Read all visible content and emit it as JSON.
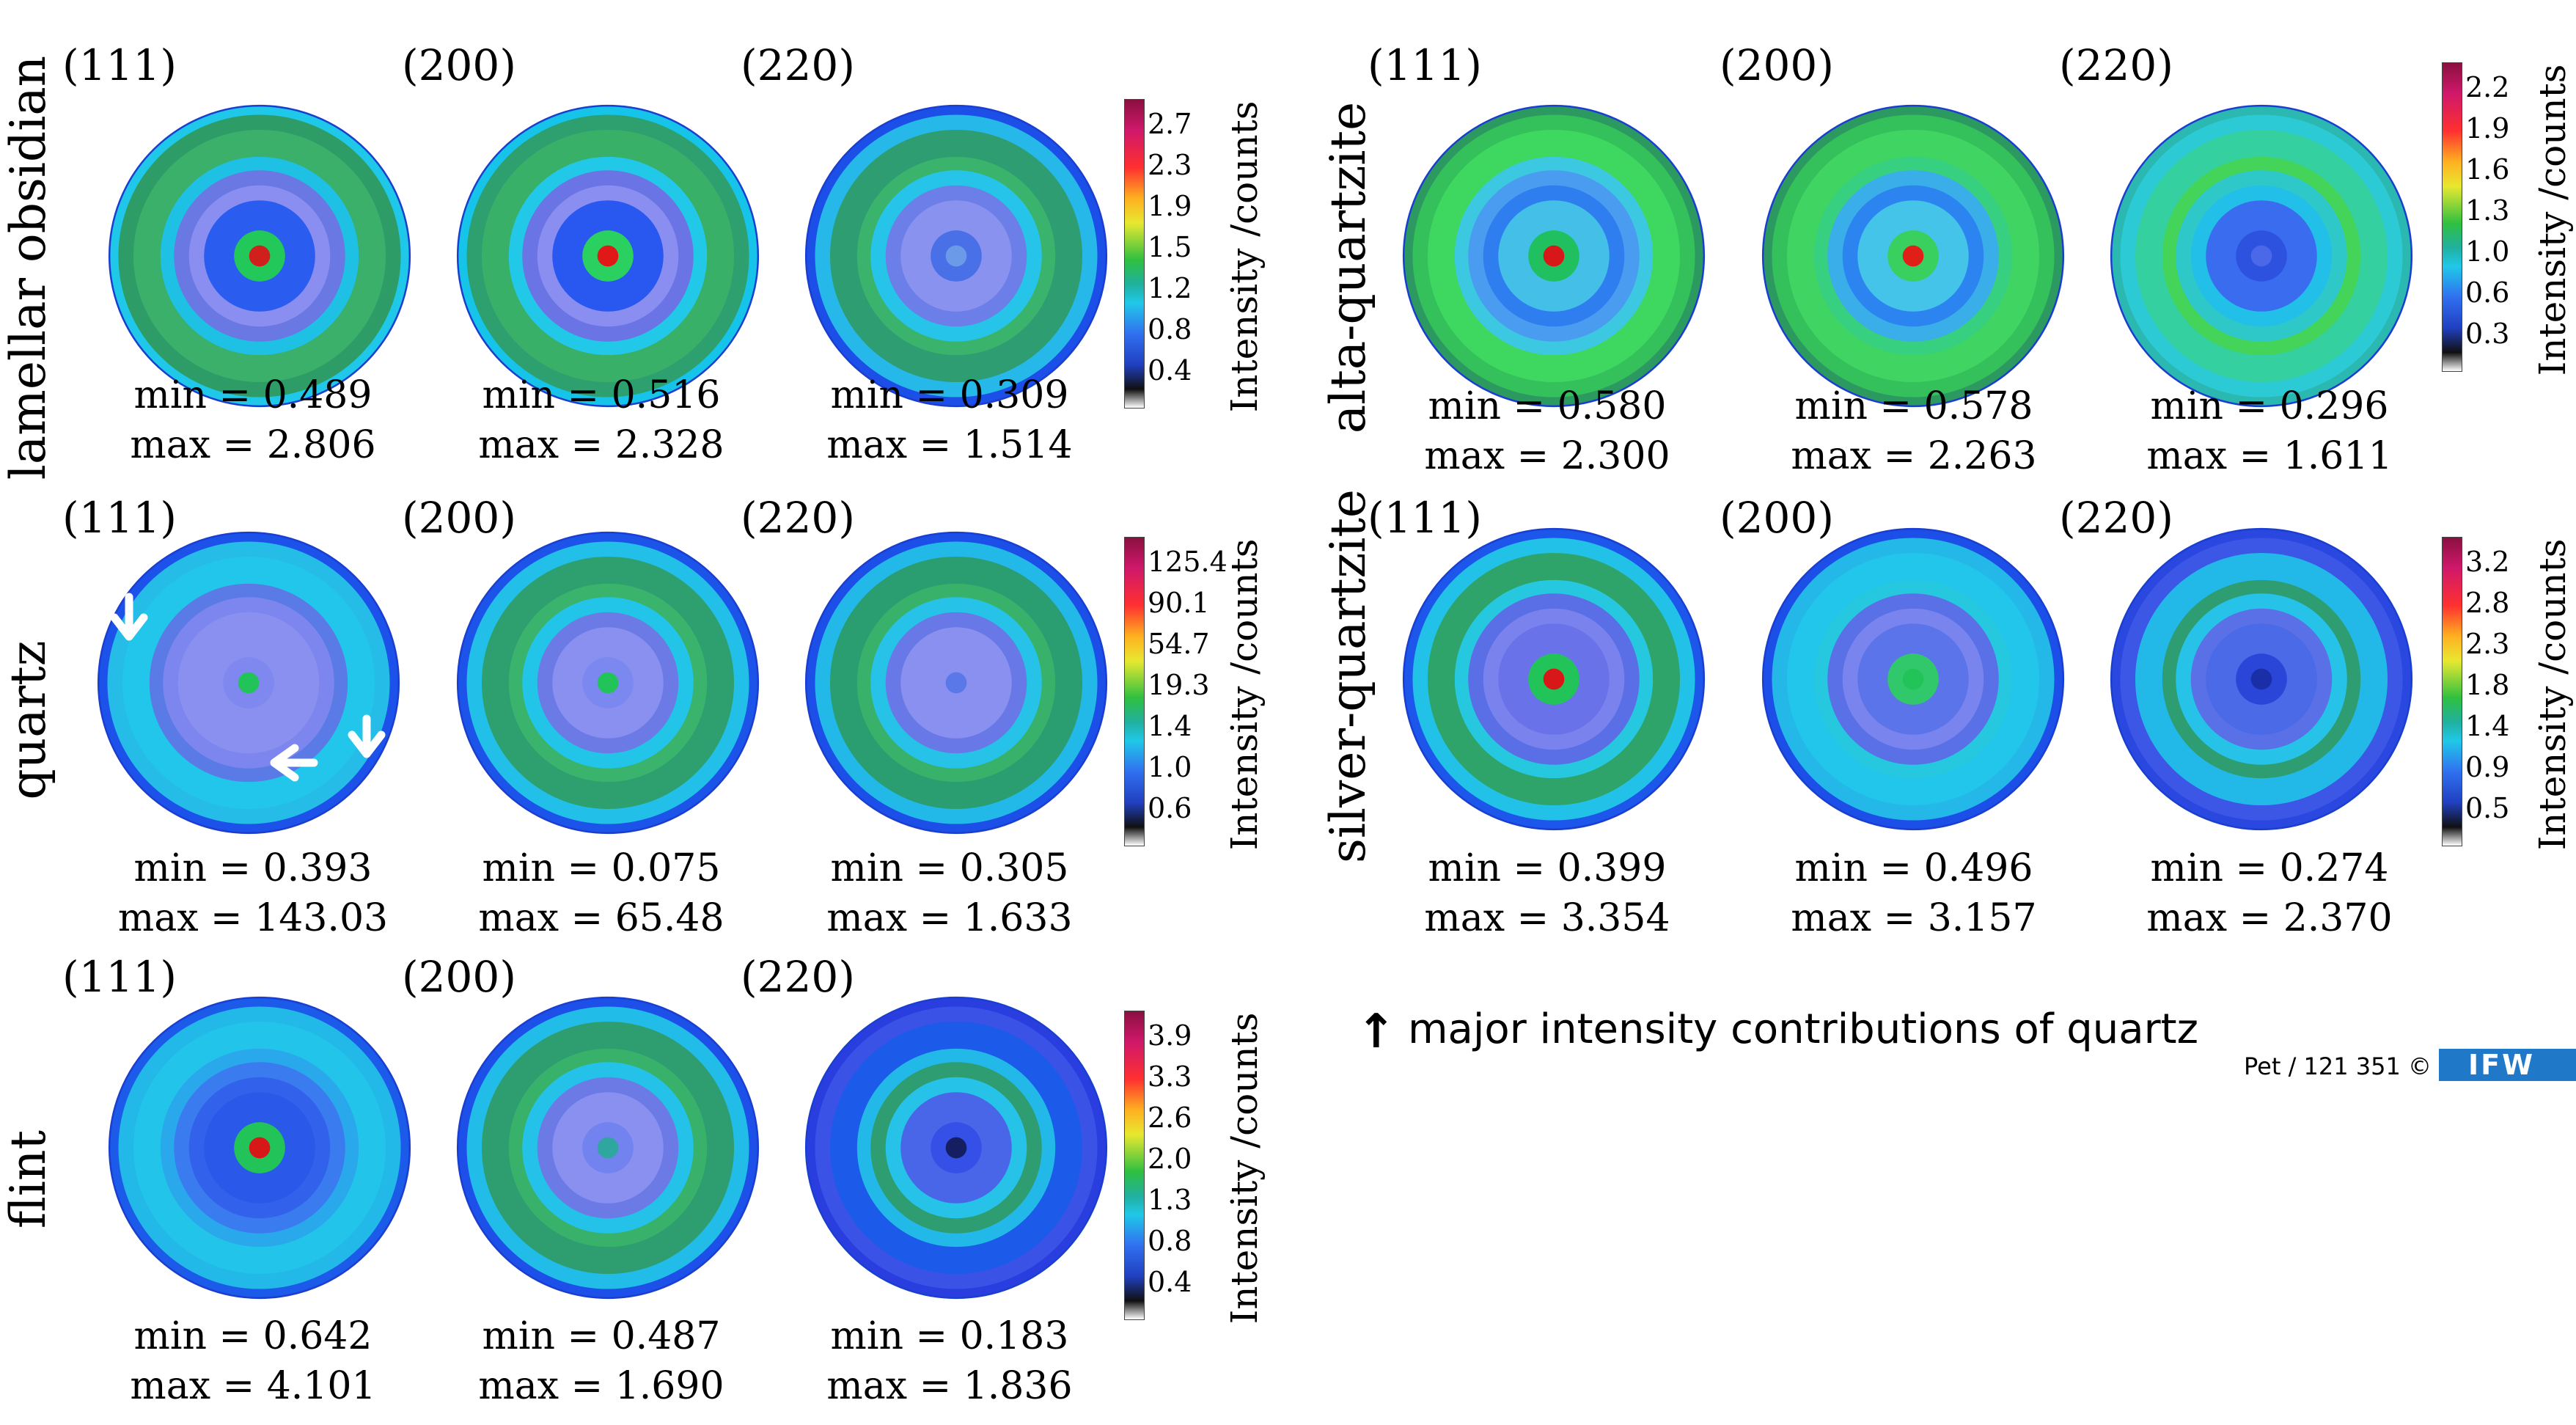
{
  "panels": [
    {
      "sample": "lamellar obsidian",
      "scale_ticks": [
        "2.7",
        "2.3",
        "1.9",
        "1.5",
        "1.2",
        "0.8",
        "0.4"
      ],
      "intensity_label": "Intensity /counts",
      "poles": [
        {
          "hkl": "(111)",
          "min": "min = 0.489",
          "max": "max = 2.806",
          "colors": [
            "#1fc8e8",
            "#2e9c66",
            "#3ab06a",
            "#1ec0e4",
            "#6a78e4",
            "#8a8ef0",
            "#2a5cf0",
            "#22c85a",
            "#d0201e"
          ]
        },
        {
          "hkl": "(200)",
          "min": "min = 0.516",
          "max": "max = 2.328",
          "colors": [
            "#16c4ea",
            "#2ea070",
            "#38b068",
            "#22c8e8",
            "#6a74e4",
            "#8a8ef0",
            "#2858f0",
            "#2ad060",
            "#e01818"
          ]
        },
        {
          "hkl": "(220)",
          "min": "min = 0.309",
          "max": "max = 1.514",
          "colors": [
            "#1c4ee8",
            "#26b8e8",
            "#2e9e72",
            "#3ab46c",
            "#26c4e8",
            "#6c7ee8",
            "#8a92f0",
            "#4a70e8",
            "#6a9ae8"
          ]
        }
      ]
    },
    {
      "sample": "alta-quartzite",
      "scale_ticks": [
        "2.2",
        "1.9",
        "1.6",
        "1.3",
        "1.0",
        "0.6",
        "0.3"
      ],
      "intensity_label": "Intensity /counts",
      "poles": [
        {
          "hkl": "(111)",
          "min": "min = 0.580",
          "max": "max = 2.300",
          "colors": [
            "#2c9a60",
            "#34c05a",
            "#3ed860",
            "#3cc8e0",
            "#4a9cf0",
            "#2e7ef0",
            "#44c0e8",
            "#20c060",
            "#d81818"
          ]
        },
        {
          "hkl": "(200)",
          "min": "min = 0.578",
          "max": "max = 2.263",
          "colors": [
            "#2c9a60",
            "#34c05a",
            "#40d462",
            "#36d080",
            "#3aaee8",
            "#2c84f0",
            "#44c4e8",
            "#3ad060",
            "#e02018"
          ]
        },
        {
          "hkl": "(220)",
          "min": "min = 0.296",
          "max": "max = 1.611",
          "colors": [
            "#2ab8b0",
            "#2ccad4",
            "#34d0a0",
            "#44d45a",
            "#2ec8c8",
            "#22c0e8",
            "#3a6cf0",
            "#2e52e0",
            "#4a68e8"
          ]
        }
      ]
    },
    {
      "sample": "quartz",
      "scale_ticks": [
        "125.4",
        "90.1",
        "54.7",
        "19.3",
        "1.4",
        "1.0",
        "0.6"
      ],
      "intensity_label": "Intensity /counts",
      "poles": [
        {
          "hkl": "(111)",
          "min": "min = 0.393",
          "max": "max = 143.03",
          "colors": [
            "#1c52ea",
            "#26bce8",
            "#22c6ea",
            "#5a7ae6",
            "#7c86ee",
            "#8a90f0",
            "#8a90f0",
            "#7e88ee",
            "#22c45a"
          ]
        },
        {
          "hkl": "(200)",
          "min": "min = 0.075",
          "max": "max = 65.48",
          "colors": [
            "#1c54ea",
            "#22c0e8",
            "#2ea070",
            "#3ab46c",
            "#22c4e8",
            "#6c7ae6",
            "#8a90f0",
            "#7a88f0",
            "#22c45a"
          ]
        },
        {
          "hkl": "(220)",
          "min": "min = 0.305",
          "max": "max = 1.633",
          "colors": [
            "#1c4ee8",
            "#22b8e8",
            "#2a9e70",
            "#38b26a",
            "#26c2e8",
            "#6878e6",
            "#8a90f0",
            "#8a90f0",
            "#5a78e8"
          ]
        }
      ]
    },
    {
      "sample": "silver-quartzite",
      "scale_ticks": [
        "3.2",
        "2.8",
        "2.3",
        "1.8",
        "1.4",
        "0.9",
        "0.5"
      ],
      "intensity_label": "Intensity /counts",
      "poles": [
        {
          "hkl": "(111)",
          "min": "min = 0.399",
          "max": "max = 3.354",
          "colors": [
            "#1c56ea",
            "#22c2e8",
            "#2ea46a",
            "#26c8e0",
            "#5a6ee6",
            "#7a82ee",
            "#6a72ea",
            "#22c45a",
            "#d81818"
          ]
        },
        {
          "hkl": "(200)",
          "min": "min = 0.496",
          "max": "max = 3.157",
          "colors": [
            "#1c4ee8",
            "#24b8e8",
            "#22c6ea",
            "#26c8e0",
            "#5a70e6",
            "#7a84ee",
            "#5c74ea",
            "#30c86a",
            "#22c45a"
          ]
        },
        {
          "hkl": "(220)",
          "min": "min = 0.274",
          "max": "max = 2.370",
          "colors": [
            "#2a48e0",
            "#3c56e6",
            "#22b8e8",
            "#2e9e72",
            "#26c2e8",
            "#5a70e6",
            "#4a6ae8",
            "#2a46d8",
            "#1a2ea8"
          ]
        }
      ]
    },
    {
      "sample": "flint",
      "scale_ticks": [
        "3.9",
        "3.3",
        "2.6",
        "2.0",
        "1.3",
        "0.8",
        "0.4"
      ],
      "intensity_label": "Intensity /counts",
      "poles": [
        {
          "hkl": "(111)",
          "min": "min = 0.642",
          "max": "max = 4.101",
          "colors": [
            "#1c5aea",
            "#22b8e8",
            "#22c4ea",
            "#2aa8ec",
            "#3a7cf0",
            "#3262ec",
            "#2a58e8",
            "#22c45a",
            "#d81818"
          ]
        },
        {
          "hkl": "(200)",
          "min": "min = 0.487",
          "max": "max = 1.690",
          "colors": [
            "#1c50e8",
            "#22bce8",
            "#2e9e70",
            "#38b26a",
            "#24c2e8",
            "#6c7ae6",
            "#8a90f0",
            "#7282ee",
            "#30a6a0"
          ]
        },
        {
          "hkl": "(220)",
          "min": "min = 0.183",
          "max": "max = 1.836",
          "colors": [
            "#2a3ee0",
            "#3a52e6",
            "#1c5aea",
            "#22b8e8",
            "#2e9e72",
            "#26c2e8",
            "#4a66e8",
            "#3450e6",
            "#141e60"
          ]
        }
      ]
    }
  ],
  "legend": {
    "arrow": "↑",
    "text": "major intensity contributions of quartz"
  },
  "credit": {
    "text": "Pet / 121 351 ©",
    "logo": "IFW"
  }
}
